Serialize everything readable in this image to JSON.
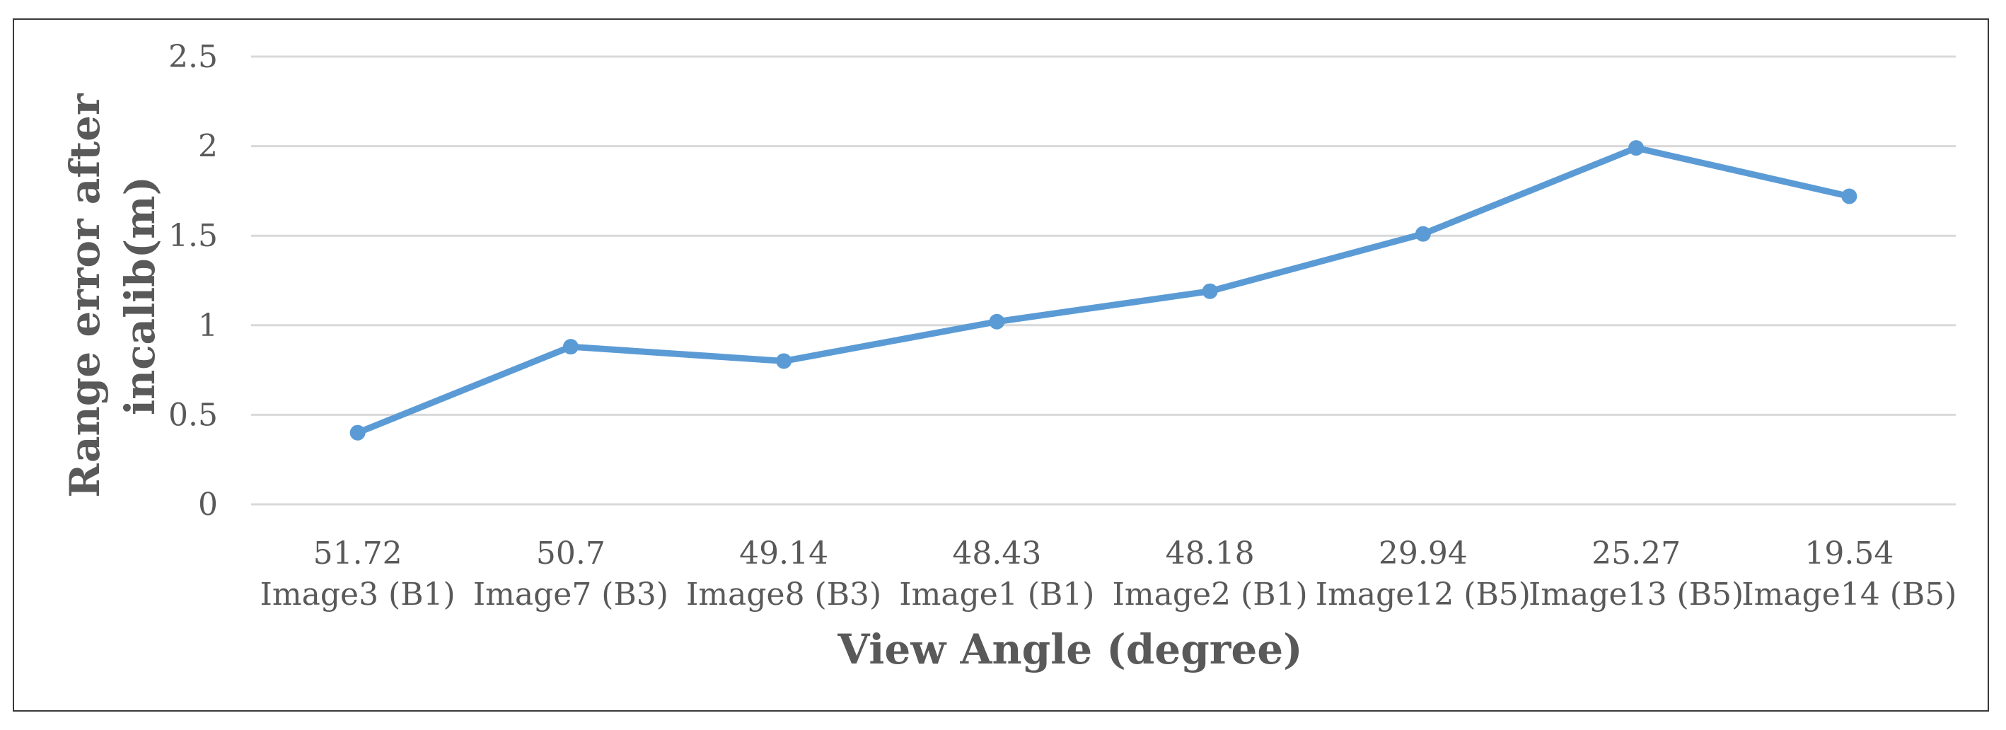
{
  "chart_data": {
    "type": "line",
    "xlabel": "View Angle (degree)",
    "ylabel": "Range error after incalib(m)",
    "categories": [
      [
        "51.72",
        "Image3 (B1)"
      ],
      [
        "50.7",
        "Image7 (B3)"
      ],
      [
        "49.14",
        "Image8 (B3)"
      ],
      [
        "48.43",
        "Image1 (B1)"
      ],
      [
        "48.18",
        "Image2 (B1)"
      ],
      [
        "29.94",
        "Image12 (B5)"
      ],
      [
        "25.27",
        "Image13 (B5)"
      ],
      [
        "19.54",
        "Image14 (B5)"
      ]
    ],
    "values": [
      0.4,
      0.88,
      0.8,
      1.02,
      1.19,
      1.51,
      1.99,
      1.72
    ],
    "ylim": [
      0,
      2.5
    ],
    "yticks": [
      "0",
      "0.5",
      "1",
      "1.5",
      "2",
      "2.5"
    ],
    "grid": true,
    "legend": "none",
    "colors": {
      "series": "#5b9bd5",
      "grid": "#d9d9d9",
      "text": "#595959"
    }
  }
}
